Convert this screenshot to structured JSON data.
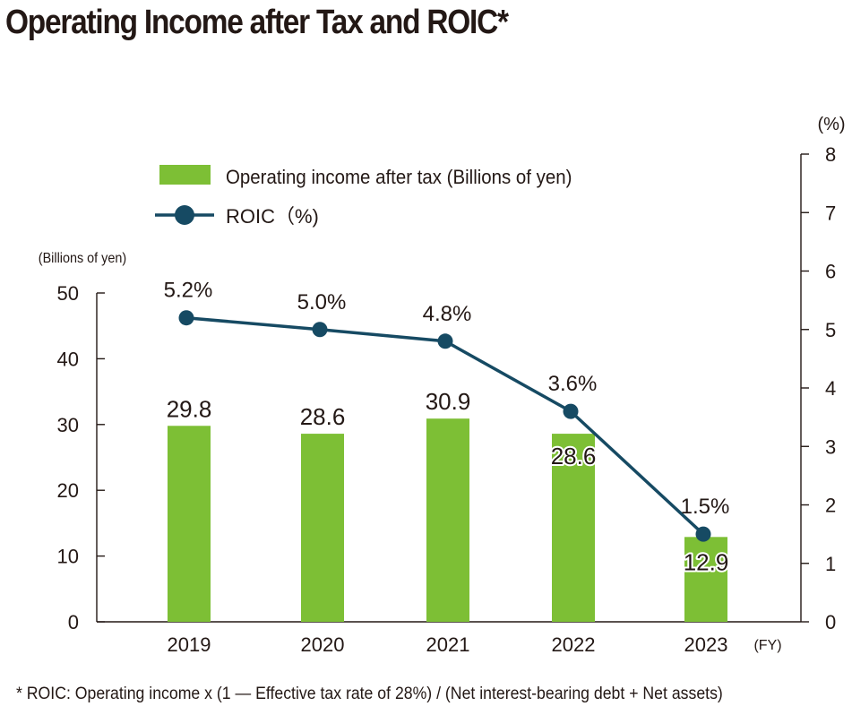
{
  "title": "Operating Income after Tax and ROIC*",
  "footnote": "* ROIC: Operating income x  (1 — Effective tax rate of 28%) / (Net interest-bearing debt + Net assets)",
  "colors": {
    "bar": "#7dbf35",
    "line": "#164a63",
    "text": "#231815"
  },
  "chart_data": {
    "type": "bar",
    "categories": [
      "2019",
      "2020",
      "2021",
      "2022",
      "2023"
    ],
    "x_unit": "(FY)",
    "y_left": {
      "label": "(Billions of yen)",
      "range": [
        0,
        50
      ],
      "ticks": [
        "0",
        "10",
        "20",
        "30",
        "40",
        "50"
      ]
    },
    "y_right": {
      "label": "(%)",
      "range": [
        0,
        8
      ],
      "ticks": [
        "0",
        "1",
        "2",
        "3",
        "4",
        "5",
        "6",
        "7",
        "8"
      ]
    },
    "series": [
      {
        "name": "Operating income after tax (Billions of yen)",
        "type": "bar",
        "axis": "left",
        "values": [
          29.8,
          28.6,
          30.9,
          28.6,
          12.9
        ],
        "labels": [
          "29.8",
          "28.6",
          "30.9",
          "28.6",
          "12.9"
        ]
      },
      {
        "name": "ROIC（%)",
        "type": "line",
        "axis": "right",
        "values": [
          5.2,
          5.0,
          4.8,
          3.6,
          1.5
        ],
        "labels": [
          "5.2%",
          "5.0%",
          "4.8%",
          "3.6%",
          "1.5%"
        ]
      }
    ],
    "legend_position": "top-center",
    "grid": false
  }
}
